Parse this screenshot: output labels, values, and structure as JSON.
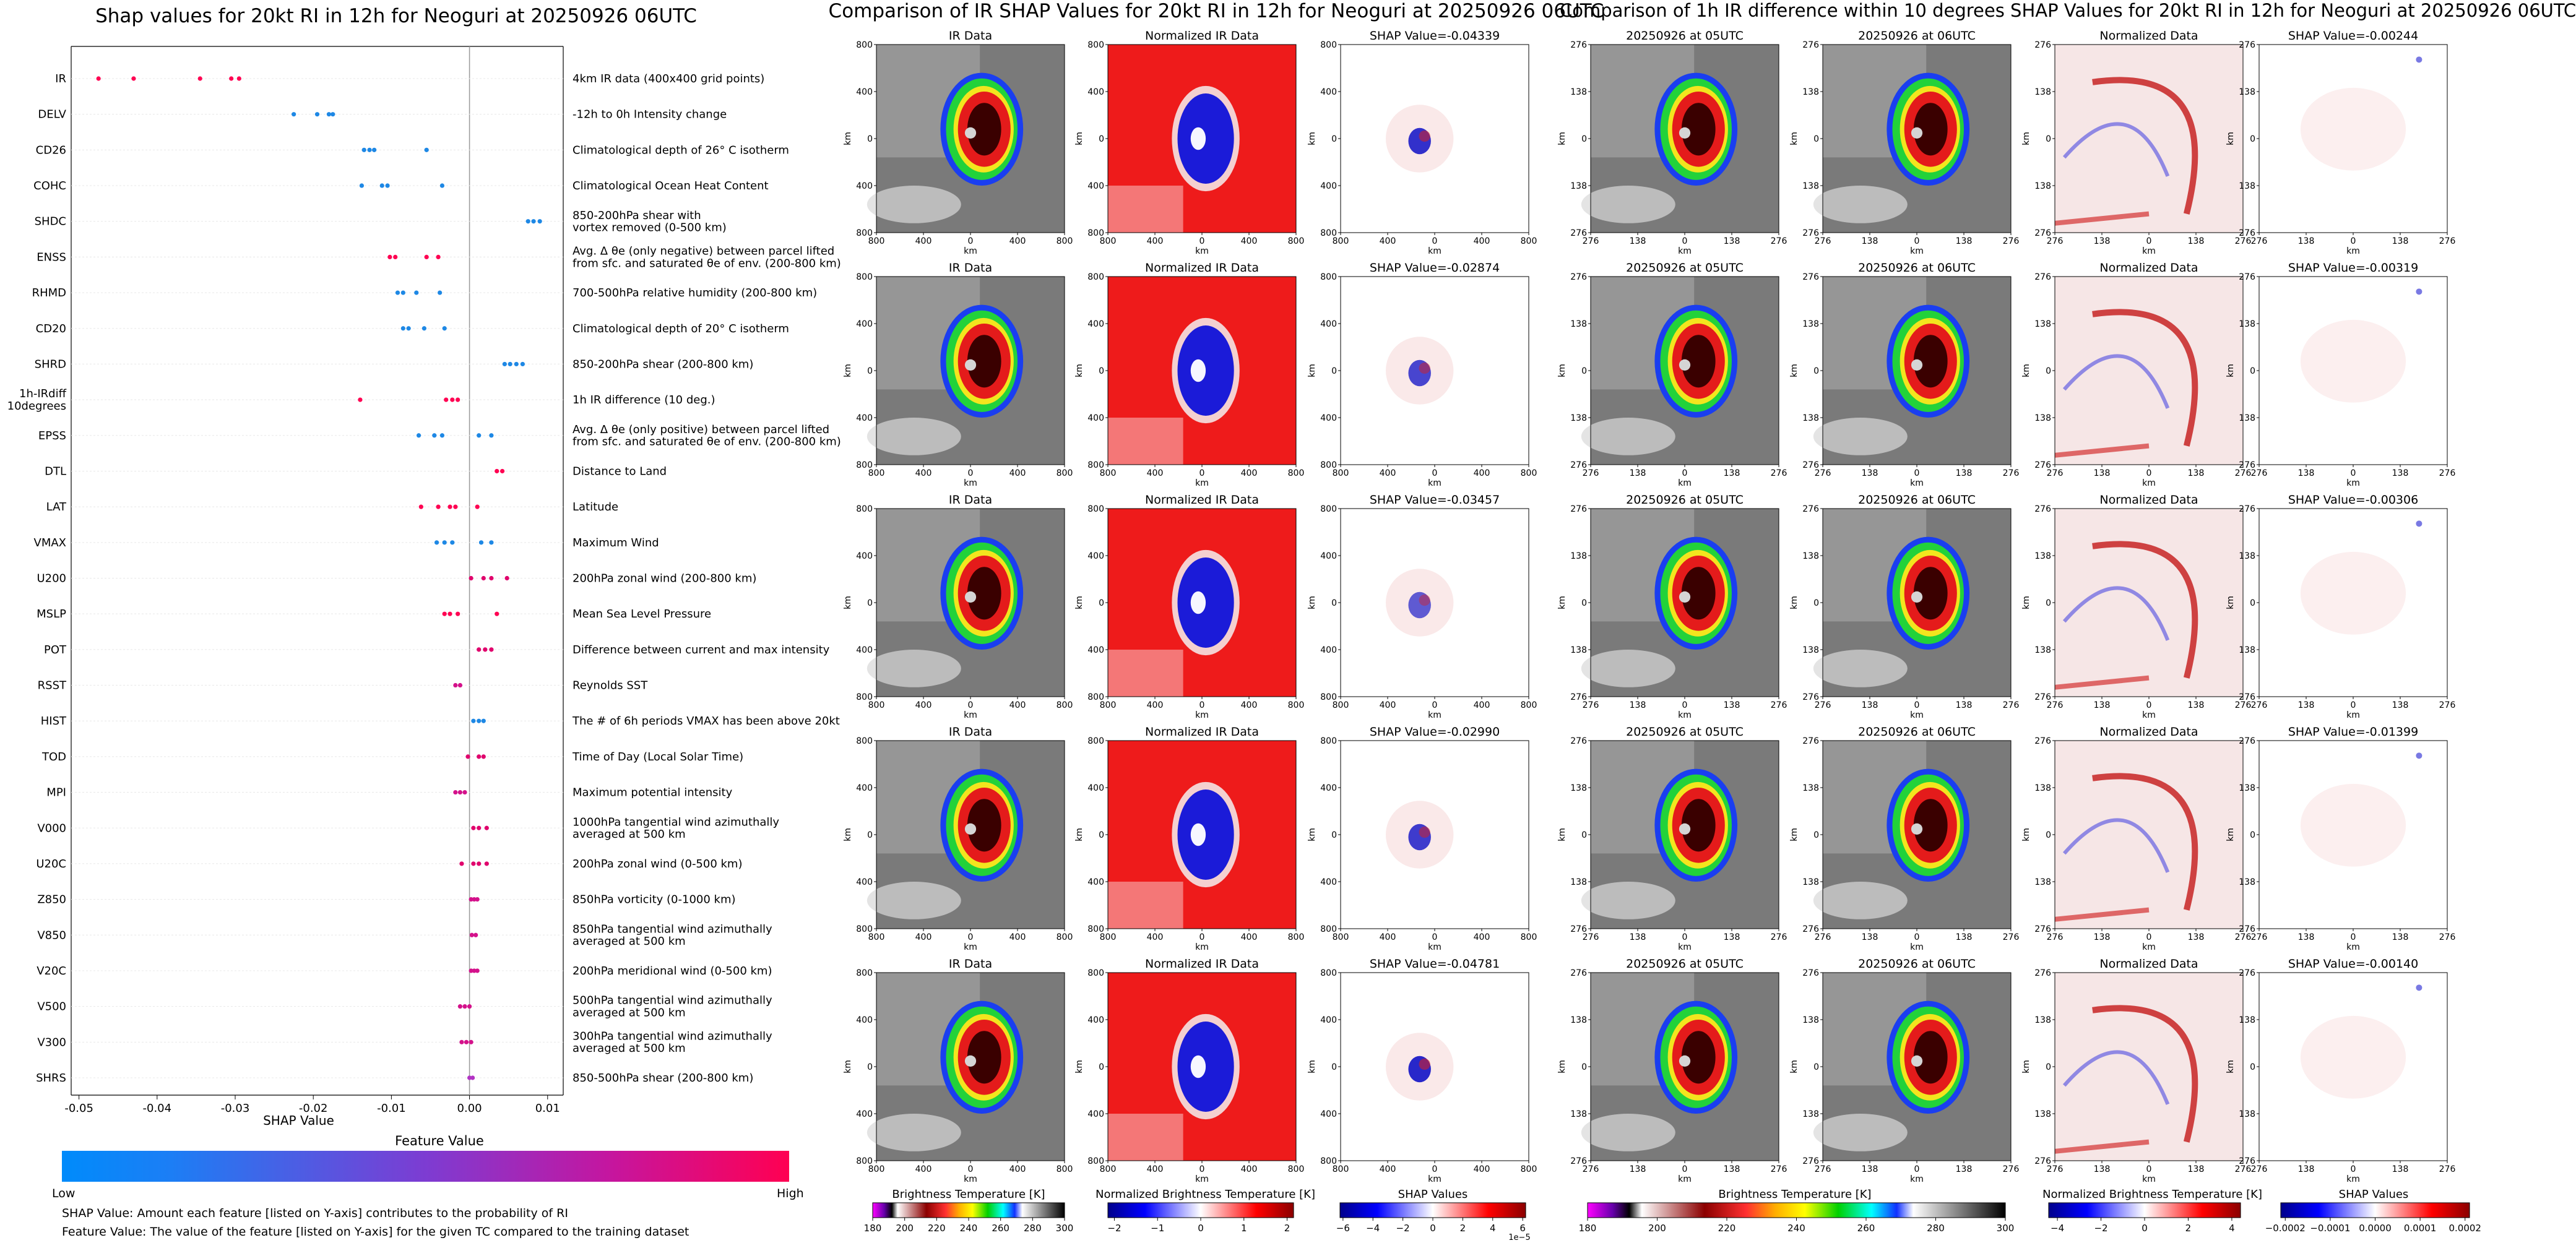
{
  "left_panel": {
    "title": "Shap values for 20kt RI in 12h for Neoguri at 20250926 06UTC",
    "features": [
      {
        "code": "IR",
        "desc": "4km IR data (400x400 grid points)",
        "points": [
          -0.0475,
          -0.043,
          -0.0345,
          -0.0305,
          -0.0295
        ],
        "colors": [
          "#ff0052",
          "#ff0052",
          "#ff0052",
          "#ff0052",
          "#ff0052"
        ]
      },
      {
        "code": "DELV",
        "desc": "-12h to 0h Intensity change",
        "points": [
          -0.0225,
          -0.0195,
          -0.018,
          -0.0175
        ],
        "colors": [
          "#1e88e5",
          "#1e88e5",
          "#1e88e5",
          "#1e88e5"
        ]
      },
      {
        "code": "CD26",
        "desc": "Climatological depth of 26° C isotherm",
        "points": [
          -0.0135,
          -0.0128,
          -0.0122,
          -0.0055
        ],
        "colors": [
          "#1e88e5",
          "#1e88e5",
          "#1e88e5",
          "#1e88e5"
        ]
      },
      {
        "code": "COHC",
        "desc": "Climatological Ocean Heat Content",
        "points": [
          -0.0138,
          -0.0112,
          -0.0105,
          -0.0035
        ],
        "colors": [
          "#1e88e5",
          "#1e88e5",
          "#1e88e5",
          "#1e88e5"
        ]
      },
      {
        "code": "SHDC",
        "desc": "850-200hPa shear with\nvortex removed (0-500 km)",
        "points": [
          0.0075,
          0.0082,
          0.009
        ],
        "colors": [
          "#1e88e5",
          "#1e88e5",
          "#1e88e5"
        ]
      },
      {
        "code": "ENSS",
        "desc": "Avg. Δ θe (only negative) between parcel lifted\nfrom sfc. and saturated θe of env. (200-800 km)",
        "points": [
          -0.0102,
          -0.0095,
          -0.0055,
          -0.004
        ],
        "colors": [
          "#ff0052",
          "#ff0052",
          "#ff0052",
          "#ff0052"
        ]
      },
      {
        "code": "RHMD",
        "desc": "700-500hPa relative humidity (200-800 km)",
        "points": [
          -0.0092,
          -0.0085,
          -0.0068,
          -0.0038
        ],
        "colors": [
          "#1e88e5",
          "#1e88e5",
          "#1e88e5",
          "#1e88e5"
        ]
      },
      {
        "code": "CD20",
        "desc": "Climatological depth of 20° C isotherm",
        "points": [
          -0.0085,
          -0.0078,
          -0.0058,
          -0.0032
        ],
        "colors": [
          "#1e88e5",
          "#1e88e5",
          "#1e88e5",
          "#1e88e5"
        ]
      },
      {
        "code": "SHRD",
        "desc": "850-200hPa shear (200-800 km)",
        "points": [
          0.0045,
          0.0052,
          0.006,
          0.0068
        ],
        "colors": [
          "#1e88e5",
          "#1e88e5",
          "#1e88e5",
          "#1e88e5"
        ]
      },
      {
        "code": "1h-IRdiff\n10degrees",
        "desc": "1h IR difference (10 deg.)",
        "points": [
          -0.014,
          -0.003,
          -0.0022,
          -0.0015
        ],
        "colors": [
          "#ff0052",
          "#ff0052",
          "#ff0052",
          "#ff0052"
        ]
      },
      {
        "code": "EPSS",
        "desc": "Avg. Δ θe (only positive) between parcel lifted\nfrom sfc. and saturated θe of env. (200-800 km)",
        "points": [
          -0.0065,
          -0.0045,
          -0.0035,
          0.0012,
          0.0028
        ],
        "colors": [
          "#1e88e5",
          "#1e88e5",
          "#1e88e5",
          "#1e88e5",
          "#1e88e5"
        ]
      },
      {
        "code": "DTL",
        "desc": "Distance to Land",
        "points": [
          0.0035,
          0.0042
        ],
        "colors": [
          "#ff0052",
          "#ff0052"
        ]
      },
      {
        "code": "LAT",
        "desc": "Latitude",
        "points": [
          -0.0062,
          -0.004,
          -0.0025,
          -0.0018,
          0.001
        ],
        "colors": [
          "#ff0052",
          "#ff0052",
          "#ff0052",
          "#ff0052",
          "#ff0052"
        ]
      },
      {
        "code": "VMAX",
        "desc": "Maximum Wind",
        "points": [
          -0.0042,
          -0.0032,
          -0.0022,
          0.0015,
          0.0028
        ],
        "colors": [
          "#1e88e5",
          "#1e88e5",
          "#1e88e5",
          "#1e88e5",
          "#1e88e5"
        ]
      },
      {
        "code": "U200",
        "desc": "200hPa zonal wind (200-800 km)",
        "points": [
          0.0002,
          0.0018,
          0.0028,
          0.0048
        ],
        "colors": [
          "#e0006c",
          "#e0006c",
          "#e0006c",
          "#e0006c"
        ]
      },
      {
        "code": "MSLP",
        "desc": "Mean Sea Level Pressure",
        "points": [
          -0.0032,
          -0.0025,
          -0.0015,
          0.0035
        ],
        "colors": [
          "#ff0052",
          "#ff0052",
          "#ff0052",
          "#ff0052"
        ]
      },
      {
        "code": "POT",
        "desc": "Difference between current and max intensity",
        "points": [
          0.0012,
          0.002,
          0.0028
        ],
        "colors": [
          "#e0006c",
          "#e0006c",
          "#e0006c"
        ]
      },
      {
        "code": "RSST",
        "desc": "Reynolds SST",
        "points": [
          -0.0018,
          -0.0012
        ],
        "colors": [
          "#d4128b",
          "#d4128b"
        ]
      },
      {
        "code": "HIST",
        "desc": "The # of 6h periods VMAX has been above 20kt",
        "points": [
          0.0005,
          0.0012,
          0.0018
        ],
        "colors": [
          "#1e88e5",
          "#1e88e5",
          "#1e88e5"
        ]
      },
      {
        "code": "TOD",
        "desc": "Time of Day (Local Solar Time)",
        "points": [
          -0.0002,
          0.0012,
          0.0018
        ],
        "colors": [
          "#e0006c",
          "#e0006c",
          "#e0006c"
        ]
      },
      {
        "code": "MPI",
        "desc": "Maximum potential intensity",
        "points": [
          -0.0018,
          -0.0012,
          -0.0006
        ],
        "colors": [
          "#d4128b",
          "#d4128b",
          "#d4128b"
        ]
      },
      {
        "code": "V000",
        "desc": "1000hPa tangential wind azimuthally\naveraged at 500 km",
        "points": [
          0.0005,
          0.0012,
          0.0022
        ],
        "colors": [
          "#e0006c",
          "#e0006c",
          "#e0006c"
        ]
      },
      {
        "code": "U20C",
        "desc": "200hPa zonal wind (0-500 km)",
        "points": [
          -0.001,
          0.0005,
          0.0012,
          0.0022
        ],
        "colors": [
          "#e0006c",
          "#e0006c",
          "#e0006c",
          "#e0006c"
        ]
      },
      {
        "code": "Z850",
        "desc": "850hPa vorticity (0-1000 km)",
        "points": [
          0.0002,
          0.0006,
          0.001
        ],
        "colors": [
          "#d4128b",
          "#d4128b",
          "#d4128b"
        ]
      },
      {
        "code": "V850",
        "desc": "850hPa tangential wind azimuthally\naveraged at 500 km",
        "points": [
          0.0003,
          0.0008
        ],
        "colors": [
          "#d4128b",
          "#d4128b"
        ]
      },
      {
        "code": "V20C",
        "desc": "200hPa meridional wind (0-500 km)",
        "points": [
          0.0002,
          0.0006,
          0.001
        ],
        "colors": [
          "#d4128b",
          "#d4128b",
          "#d4128b"
        ]
      },
      {
        "code": "V500",
        "desc": "500hPa tangential wind azimuthally\naveraged at 500 km",
        "points": [
          -0.0012,
          -0.0006,
          0.0
        ],
        "colors": [
          "#d4128b",
          "#d4128b",
          "#d4128b"
        ]
      },
      {
        "code": "V300",
        "desc": "300hPa tangential wind azimuthally\naveraged at 500 km",
        "points": [
          -0.001,
          -0.0004,
          0.0002
        ],
        "colors": [
          "#d4128b",
          "#d4128b",
          "#d4128b"
        ]
      },
      {
        "code": "SHRS",
        "desc": "850-500hPa shear (200-800 km)",
        "points": [
          0.0,
          0.0004
        ],
        "colors": [
          "#b233c4",
          "#b233c4"
        ]
      }
    ],
    "xticks": [
      "-0.05",
      "-0.04",
      "-0.03",
      "-0.02",
      "-0.01",
      "0.00",
      "0.01"
    ],
    "xtick_values": [
      -0.05,
      -0.04,
      -0.03,
      -0.02,
      -0.01,
      0.0,
      0.01
    ],
    "xlabel": "SHAP Value",
    "colorbar_title": "Feature Value",
    "colorbar_low": "Low",
    "colorbar_high": "High",
    "note1": "SHAP Value: Amount each feature [listed on Y-axis] contributes to the probability of RI",
    "note2": "Feature Value: The value of the feature [listed on Y-axis] for the given TC compared to the training dataset"
  },
  "middle_panel": {
    "title": "Comparison of IR SHAP Values for 20kt RI in 12h for Neoguri at 20250926 06UTC",
    "col_titles": [
      "IR Data",
      "Normalized IR Data"
    ],
    "shap_titles": [
      "SHAP Value=-0.04339",
      "SHAP Value=-0.02874",
      "SHAP Value=-0.03457",
      "SHAP Value=-0.02990",
      "SHAP Value=-0.04781"
    ],
    "yticks": [
      "800",
      "400",
      "0",
      "400",
      "800"
    ],
    "xticks": [
      "800",
      "400",
      "0",
      "400",
      "800"
    ],
    "axis_label": "km",
    "cb1_label": "Brightness Temperature [K]",
    "cb1_ticks": [
      "180",
      "200",
      "220",
      "240",
      "260",
      "280",
      "300"
    ],
    "cb2_label": "Normalized Brightness Temperature [K]",
    "cb2_ticks": [
      "−2",
      "−1",
      "0",
      "1",
      "2"
    ],
    "cb3_label": "SHAP Values",
    "cb3_ticks": [
      "−6",
      "−4",
      "−2",
      "0",
      "2",
      "4",
      "6"
    ],
    "cb3_exp": "1e−5"
  },
  "right_panel": {
    "title": "Comparison of 1h IR difference within 10 degrees SHAP Values for 20kt RI in 12h for Neoguri at 20250926 06UTC",
    "col_titles": [
      "20250926 at 05UTC",
      "20250926 at 06UTC",
      "Normalized Data"
    ],
    "shap_titles": [
      "SHAP Value=-0.00244",
      "SHAP Value=-0.00319",
      "SHAP Value=-0.00306",
      "SHAP Value=-0.01399",
      "SHAP Value=-0.00140"
    ],
    "yticks": [
      "276",
      "138",
      "0",
      "138",
      "276"
    ],
    "xticks": [
      "276",
      "138",
      "0",
      "138",
      "276"
    ],
    "axis_label": "km",
    "cb1_label": "Brightness Temperature [K]",
    "cb1_ticks": [
      "180",
      "200",
      "220",
      "240",
      "260",
      "280",
      "300"
    ],
    "cb2_label": "Normalized Brightness Temperature [K]",
    "cb2_ticks": [
      "−4",
      "−2",
      "0",
      "2",
      "4"
    ],
    "cb3_label": "SHAP Values",
    "cb3_ticks": [
      "−0.0002",
      "−0.0001",
      "0.0000",
      "0.0001",
      "0.0002"
    ]
  },
  "colors": {
    "feature_low": "#008bfb",
    "feature_high": "#ff0052",
    "grid_line": "#e8e8e8"
  },
  "chart_data": {
    "type": "scatter",
    "title": "Shap values for 20kt RI in 12h for Neoguri at 20250926 06UTC",
    "xlabel": "SHAP Value",
    "ylabel": "",
    "xlim": [
      -0.051,
      0.012
    ],
    "categories": [
      "IR",
      "DELV",
      "CD26",
      "COHC",
      "SHDC",
      "ENSS",
      "RHMD",
      "CD20",
      "SHRD",
      "1h-IRdiff 10degrees",
      "EPSS",
      "DTL",
      "LAT",
      "VMAX",
      "U200",
      "MSLP",
      "POT",
      "RSST",
      "HIST",
      "TOD",
      "MPI",
      "V000",
      "U20C",
      "Z850",
      "V850",
      "V20C",
      "V500",
      "V300",
      "SHRS"
    ],
    "legend": "colorbar bottom: Feature Value Low→High"
  }
}
